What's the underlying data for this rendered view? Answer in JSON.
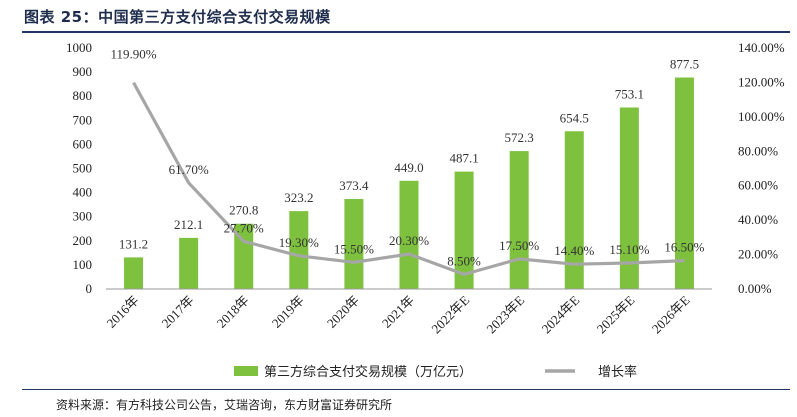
{
  "figure": {
    "title": "图表 25：中国第三方支付综合支付交易规模",
    "source": "资料来源：有方科技公司公告，艾瑞咨询，东方财富证券研究所"
  },
  "colors": {
    "bar": "#7ec13f",
    "line": "#a6a6a6",
    "rule": "#1f3763",
    "title": "#1f2d4d"
  },
  "chart_data": {
    "type": "bar",
    "combo": "bar+line (secondary axis)",
    "categories": [
      "2016年",
      "2017年",
      "2018年",
      "2019年",
      "2020年",
      "2021年",
      "2022年E",
      "2023年E",
      "2024年E",
      "2025年E",
      "2026年E"
    ],
    "series": [
      {
        "name": "第三方综合支付交易规模（万亿元）",
        "type": "bar",
        "axis": "left",
        "values": [
          131.2,
          212.1,
          270.8,
          323.2,
          373.4,
          449.0,
          487.1,
          572.3,
          654.5,
          753.1,
          877.5
        ],
        "labels": [
          "131.2",
          "212.1",
          "270.8",
          "323.2",
          "373.4",
          "449.0",
          "487.1",
          "572.3",
          "654.5",
          "753.1",
          "877.5"
        ]
      },
      {
        "name": "增长率",
        "type": "line",
        "axis": "right",
        "values": [
          119.9,
          61.7,
          27.7,
          19.3,
          15.5,
          20.3,
          8.5,
          17.5,
          14.4,
          15.1,
          16.5
        ],
        "labels": [
          "119.90%",
          "61.70%",
          "27.70%",
          "19.30%",
          "15.50%",
          "20.30%",
          "8.50%",
          "17.50%",
          "14.40%",
          "15.10%",
          "16.50%"
        ]
      }
    ],
    "ylim": [
      0,
      1000
    ],
    "y_ticks": [
      "0",
      "100",
      "200",
      "300",
      "400",
      "500",
      "600",
      "700",
      "800",
      "900",
      "1000"
    ],
    "y2lim": [
      0,
      140
    ],
    "y2_ticks": [
      "0.00%",
      "20.00%",
      "40.00%",
      "60.00%",
      "80.00%",
      "100.00%",
      "120.00%",
      "140.00%"
    ],
    "grid": false,
    "legend_position": "bottom"
  }
}
